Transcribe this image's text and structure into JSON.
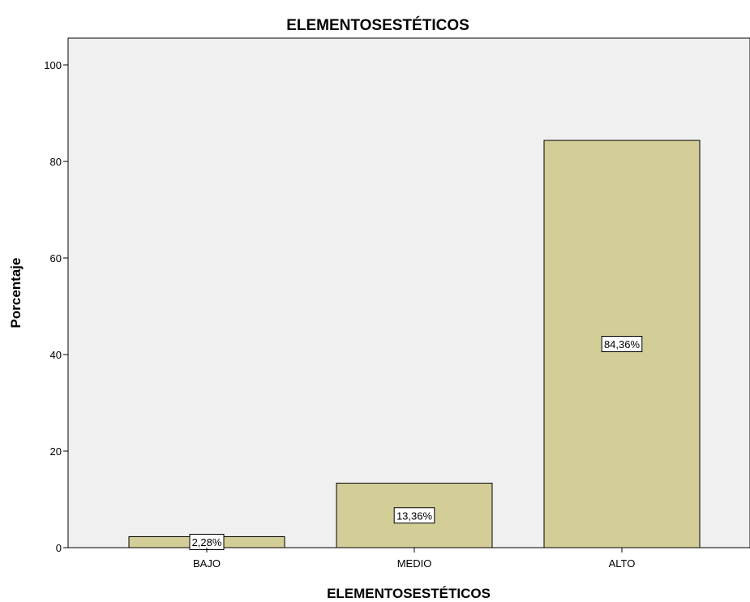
{
  "chart_data": {
    "type": "bar",
    "title": "ELEMENTOSESTÉTICOS",
    "xlabel": "ELEMENTOSESTÉTICOS",
    "ylabel": "Porcentaje",
    "categories": [
      "BAJO",
      "MEDIO",
      "ALTO"
    ],
    "values": [
      2.28,
      13.36,
      84.36
    ],
    "data_labels": [
      "2,28%",
      "13,36%",
      "84,36%"
    ],
    "ylim": [
      0,
      100
    ],
    "yticks": [
      0,
      20,
      40,
      60,
      80,
      100
    ],
    "grid": false,
    "legend": "none",
    "colors": {
      "plot_background": "#f0f0f0",
      "bar_fill": "#d3ce97",
      "bar_stroke": "#000000"
    }
  }
}
